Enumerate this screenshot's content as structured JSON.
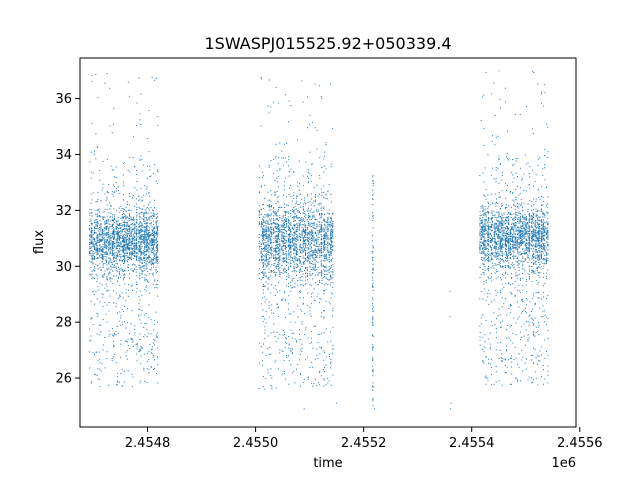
{
  "chart_data": {
    "type": "scatter",
    "title": "1SWASPJ015525.92+050339.4",
    "xlabel": "time",
    "ylabel": "flux",
    "x_offset_label": "1e6",
    "xlim": [
      2454675,
      2455593
    ],
    "ylim": [
      24.25,
      37.45
    ],
    "xticks": [
      {
        "value": 2454800,
        "label": "2.4548"
      },
      {
        "value": 2455000,
        "label": "2.4550"
      },
      {
        "value": 2455200,
        "label": "2.4552"
      },
      {
        "value": 2455400,
        "label": "2.4554"
      },
      {
        "value": 2455600,
        "label": "2.4556"
      }
    ],
    "yticks": [
      {
        "value": 26,
        "label": "26"
      },
      {
        "value": 28,
        "label": "28"
      },
      {
        "value": 30,
        "label": "30"
      },
      {
        "value": 32,
        "label": "32"
      },
      {
        "value": 34,
        "label": "34"
      },
      {
        "value": 36,
        "label": "36"
      }
    ],
    "grid": false,
    "marker_color": "#1f77b4",
    "season_ranges": [
      {
        "start": 2454692,
        "end": 2454820,
        "center": 30.9,
        "spread": 0.55
      },
      {
        "start": 2455007,
        "end": 2455145,
        "center": 30.9,
        "spread": 0.65
      },
      {
        "start": 2455415,
        "end": 2455542,
        "center": 31.0,
        "spread": 0.55
      }
    ]
  }
}
